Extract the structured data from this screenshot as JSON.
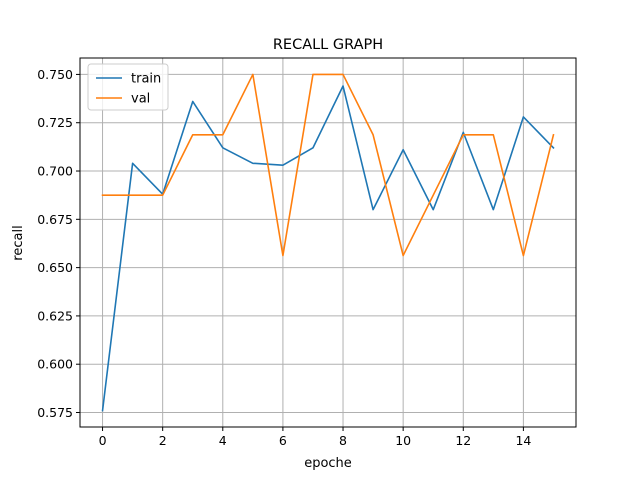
{
  "chart_data": {
    "type": "line",
    "title": "RECALL GRAPH",
    "xlabel": "epoche",
    "ylabel": "recall",
    "xlim": [
      -0.75,
      15.75
    ],
    "ylim": [
      0.5675,
      0.7585
    ],
    "xticks": [
      0,
      2,
      4,
      6,
      8,
      10,
      12,
      14
    ],
    "xtick_labels": [
      "0",
      "2",
      "4",
      "6",
      "8",
      "10",
      "12",
      "14"
    ],
    "yticks": [
      0.575,
      0.6,
      0.625,
      0.65,
      0.675,
      0.7,
      0.725,
      0.75
    ],
    "ytick_labels": [
      "0.575",
      "0.600",
      "0.625",
      "0.650",
      "0.675",
      "0.700",
      "0.725",
      "0.750"
    ],
    "grid": true,
    "legend_position": "upper-left",
    "x": [
      0,
      1,
      2,
      3,
      4,
      5,
      6,
      7,
      8,
      9,
      10,
      11,
      12,
      13,
      14,
      15
    ],
    "series": [
      {
        "name": "train",
        "color": "#1f77b4",
        "values": [
          0.576,
          0.704,
          0.688,
          0.736,
          0.712,
          0.704,
          0.703,
          0.712,
          0.744,
          0.68,
          0.711,
          0.68,
          0.72,
          0.68,
          0.728,
          0.712
        ]
      },
      {
        "name": "val",
        "color": "#ff7f0e",
        "values": [
          0.6875,
          0.6875,
          0.6875,
          0.71875,
          0.71875,
          0.75,
          0.65625,
          0.75,
          0.75,
          0.71875,
          0.65625,
          0.6875,
          0.71875,
          0.71875,
          0.65625,
          0.71875
        ]
      }
    ]
  }
}
